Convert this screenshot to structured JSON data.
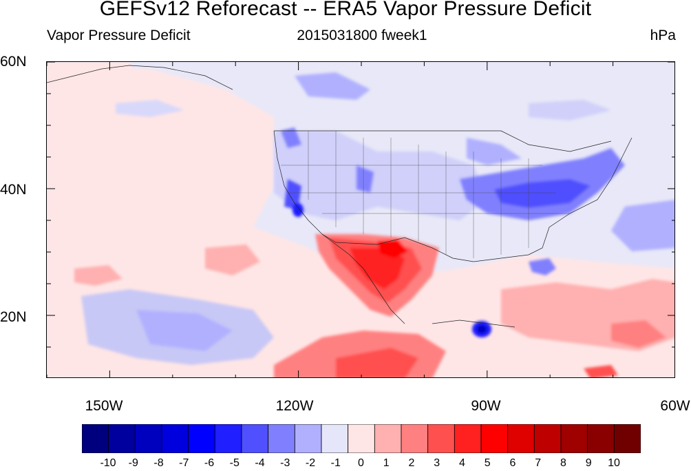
{
  "title": "GEFSv12 Reforecast -- ERA5 Vapor Pressure Deficit",
  "subtitle_left": "Vapor Pressure Deficit",
  "subtitle_center": "2015031800 fweek1",
  "subtitle_right": "hPa",
  "lat_labels": [
    "60N",
    "40N",
    "20N"
  ],
  "lon_labels": [
    "150W",
    "120W",
    "90W",
    "60W"
  ],
  "colorbar": {
    "levels": [
      "-10",
      "-9",
      "-8",
      "-7",
      "-6",
      "-5",
      "-4",
      "-3",
      "-2",
      "-1",
      "0",
      "1",
      "2",
      "3",
      "4",
      "5",
      "6",
      "7",
      "8",
      "9",
      "10"
    ],
    "colors": [
      "#00007f",
      "#00009f",
      "#0000bf",
      "#0000df",
      "#0000ff",
      "#1f1fff",
      "#5050ff",
      "#8080ff",
      "#b0b0ff",
      "#e6e6fa",
      "#ffe6e6",
      "#ffb0b0",
      "#ff8080",
      "#ff5050",
      "#ff2020",
      "#ff0000",
      "#df0000",
      "#bf0000",
      "#9f0000",
      "#8a0000",
      "#700000"
    ]
  },
  "map": {
    "lon_range": [
      -160,
      -60
    ],
    "lat_range": [
      10,
      60
    ],
    "background_color": "#e8e8f8"
  }
}
